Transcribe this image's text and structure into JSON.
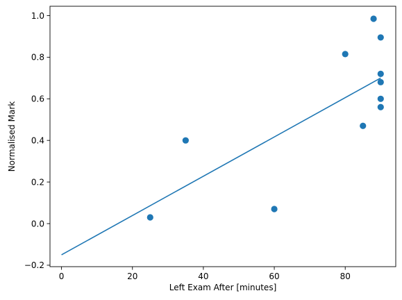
{
  "chart_data": {
    "type": "scatter",
    "title": "",
    "xlabel": "Left Exam After [minutes]",
    "ylabel": "Normalised Mark",
    "xlim": [
      -3.25,
      94.25
    ],
    "ylim": [
      -0.207,
      1.045
    ],
    "xticks": [
      0,
      20,
      40,
      60,
      80
    ],
    "xtick_labels": [
      "0",
      "20",
      "40",
      "60",
      "80"
    ],
    "yticks": [
      -0.2,
      0.0,
      0.2,
      0.4,
      0.6,
      0.8,
      1.0
    ],
    "ytick_labels": [
      "−0.2",
      "0.0",
      "0.2",
      "0.4",
      "0.6",
      "0.8",
      "1.0"
    ],
    "grid": false,
    "legend": "none",
    "series": [
      {
        "kind": "scatter",
        "color": "#1f77b4",
        "x": [
          25,
          35,
          60,
          80,
          85,
          88,
          90,
          90,
          90,
          90,
          90
        ],
        "y": [
          0.03,
          0.4,
          0.07,
          0.815,
          0.47,
          0.985,
          0.895,
          0.72,
          0.68,
          0.6,
          0.56
        ]
      },
      {
        "kind": "line",
        "color": "#1f77b4",
        "x": [
          0,
          90
        ],
        "y": [
          -0.15,
          0.7
        ]
      }
    ]
  }
}
